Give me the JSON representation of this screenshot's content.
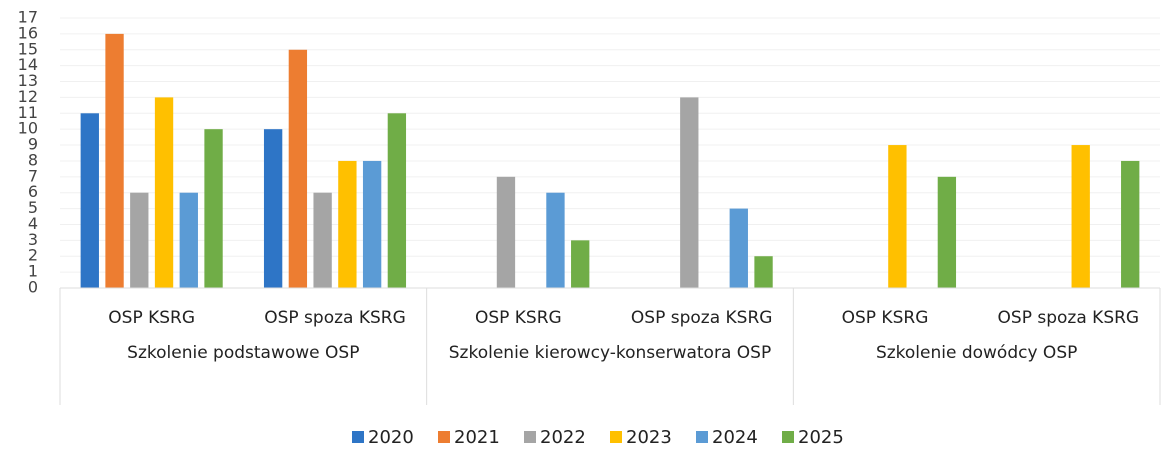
{
  "chart_data": {
    "type": "bar",
    "groups": [
      {
        "name": "Szkolenie podstawowe OSP",
        "categories": [
          "OSP KSRG",
          "OSP spoza KSRG"
        ]
      },
      {
        "name": "Szkolenie kierowcy-konserwatora OSP",
        "categories": [
          "OSP KSRG",
          "OSP spoza KSRG"
        ]
      },
      {
        "name": "Szkolenie dowódcy OSP",
        "categories": [
          "OSP KSRG",
          "OSP spoza KSRG"
        ]
      }
    ],
    "series": [
      {
        "name": "2020",
        "color": "#2e75c6",
        "values": [
          11,
          10,
          0,
          0,
          0,
          0
        ]
      },
      {
        "name": "2021",
        "color": "#ed7d31",
        "values": [
          16,
          15,
          0,
          0,
          0,
          0
        ]
      },
      {
        "name": "2022",
        "color": "#a5a5a5",
        "values": [
          6,
          6,
          7,
          12,
          0,
          0
        ]
      },
      {
        "name": "2023",
        "color": "#ffc000",
        "values": [
          12,
          8,
          0,
          0,
          9,
          9
        ]
      },
      {
        "name": "2024",
        "color": "#5b9bd5",
        "values": [
          6,
          8,
          6,
          5,
          0,
          0
        ]
      },
      {
        "name": "2025",
        "color": "#70ad47",
        "values": [
          10,
          11,
          3,
          2,
          7,
          8
        ]
      }
    ],
    "ylim": [
      0,
      17
    ],
    "yticks": [
      0,
      1,
      2,
      3,
      4,
      5,
      6,
      7,
      8,
      9,
      10,
      11,
      12,
      13,
      14,
      15,
      16,
      17
    ]
  }
}
